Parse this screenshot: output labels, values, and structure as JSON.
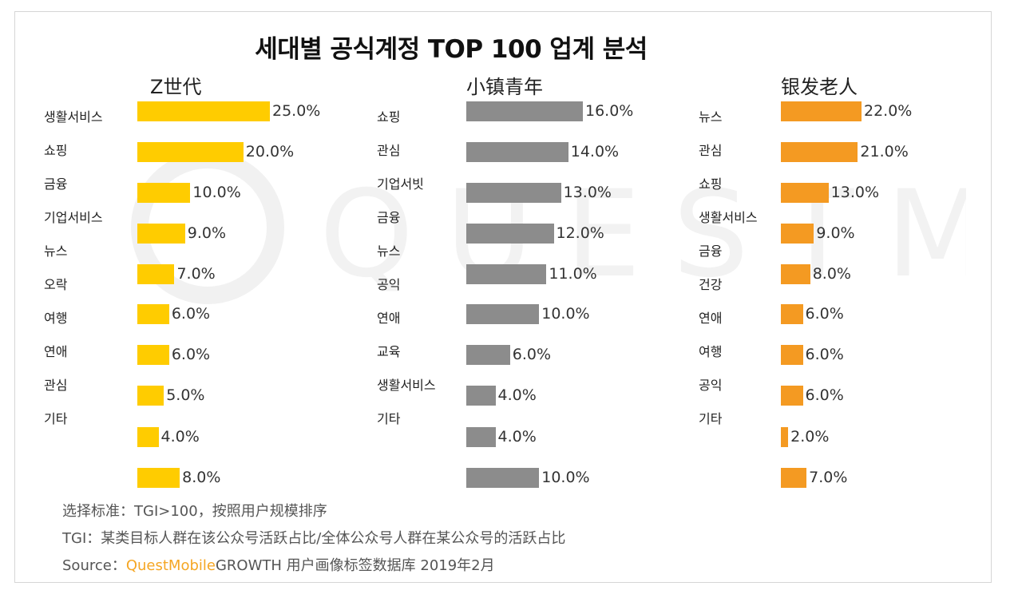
{
  "title": "세대별 공식계정 TOP 100 업계 분석",
  "colors": {
    "z": "#ffcc00",
    "town": "#8c8c8c",
    "silver": "#f49a22",
    "brand": "#f5a623"
  },
  "chart_data": [
    {
      "type": "bar",
      "orientation": "horizontal",
      "title": "Z世代",
      "categories": [
        "생활서비스",
        "쇼핑",
        "금융",
        "기업서비스",
        "뉴스",
        "오락",
        "여행",
        "연애",
        "관심",
        "기타"
      ],
      "values": [
        25.0,
        20.0,
        10.0,
        9.0,
        7.0,
        6.0,
        6.0,
        5.0,
        4.0,
        8.0
      ],
      "labels": [
        "25.0%",
        "20.0%",
        "10.0%",
        "9.0%",
        "7.0%",
        "6.0%",
        "6.0%",
        "5.0%",
        "4.0%",
        "8.0%"
      ],
      "bar_values": [
        25.0,
        20.0,
        10.0,
        9.0,
        7.0,
        6.0,
        6.0,
        5.0,
        4.0,
        8.0
      ],
      "bar_labels": [
        "25.0%",
        "20.0%",
        "10.0%",
        "9.0%",
        "7.0%",
        "6.0%",
        "6.0%",
        "5.0%",
        "4.0%",
        "8.0%"
      ],
      "xlim": [
        0,
        25
      ]
    },
    {
      "type": "bar",
      "orientation": "horizontal",
      "title": "小镇青年",
      "categories": [
        "쇼핑",
        "관심",
        "기업서빗",
        "금융",
        "뉴스",
        "공익",
        "연애",
        "교육",
        "생활서비스",
        "기타"
      ],
      "bar_values": [
        16.0,
        14.0,
        13.0,
        12.0,
        11.0,
        10.0,
        6.0,
        4.0,
        4.0,
        10.0
      ],
      "bar_labels": [
        "16.0%",
        "14.0%",
        "13.0%",
        "12.0%",
        "11.0%",
        "10.0%",
        "6.0%",
        "4.0%",
        "4.0%",
        "10.0%"
      ],
      "xlim": [
        0,
        25
      ]
    },
    {
      "type": "bar",
      "orientation": "horizontal",
      "title": "银发老人",
      "categories": [
        "뉴스",
        "관심",
        "쇼핑",
        "생활서비스",
        "금융",
        "건강",
        "연애",
        "여행",
        "공익",
        "기타"
      ],
      "bar_values": [
        22.0,
        21.0,
        13.0,
        9.0,
        8.0,
        6.0,
        6.0,
        6.0,
        2.0,
        7.0
      ],
      "bar_labels": [
        "22.0%",
        "21.0%",
        "13.0%",
        "9.0%",
        "8.0%",
        "6.0%",
        "6.0%",
        "6.0%",
        "2.0%",
        "7.0%"
      ],
      "xlim": [
        0,
        25
      ]
    }
  ],
  "notes": {
    "line1": "选择标准：TGI>100，按照用户规模排序",
    "line2": "TGI：某类目标人群在该公众号活跃占比/全体公众号人群在某公众号的活跃占比",
    "source_prefix": "Source：",
    "source_brand": "QuestMobile",
    "source_rest": "GROWTH 用户画像标签数据库  2019年2月"
  },
  "watermark": "QUESTMOBILE"
}
